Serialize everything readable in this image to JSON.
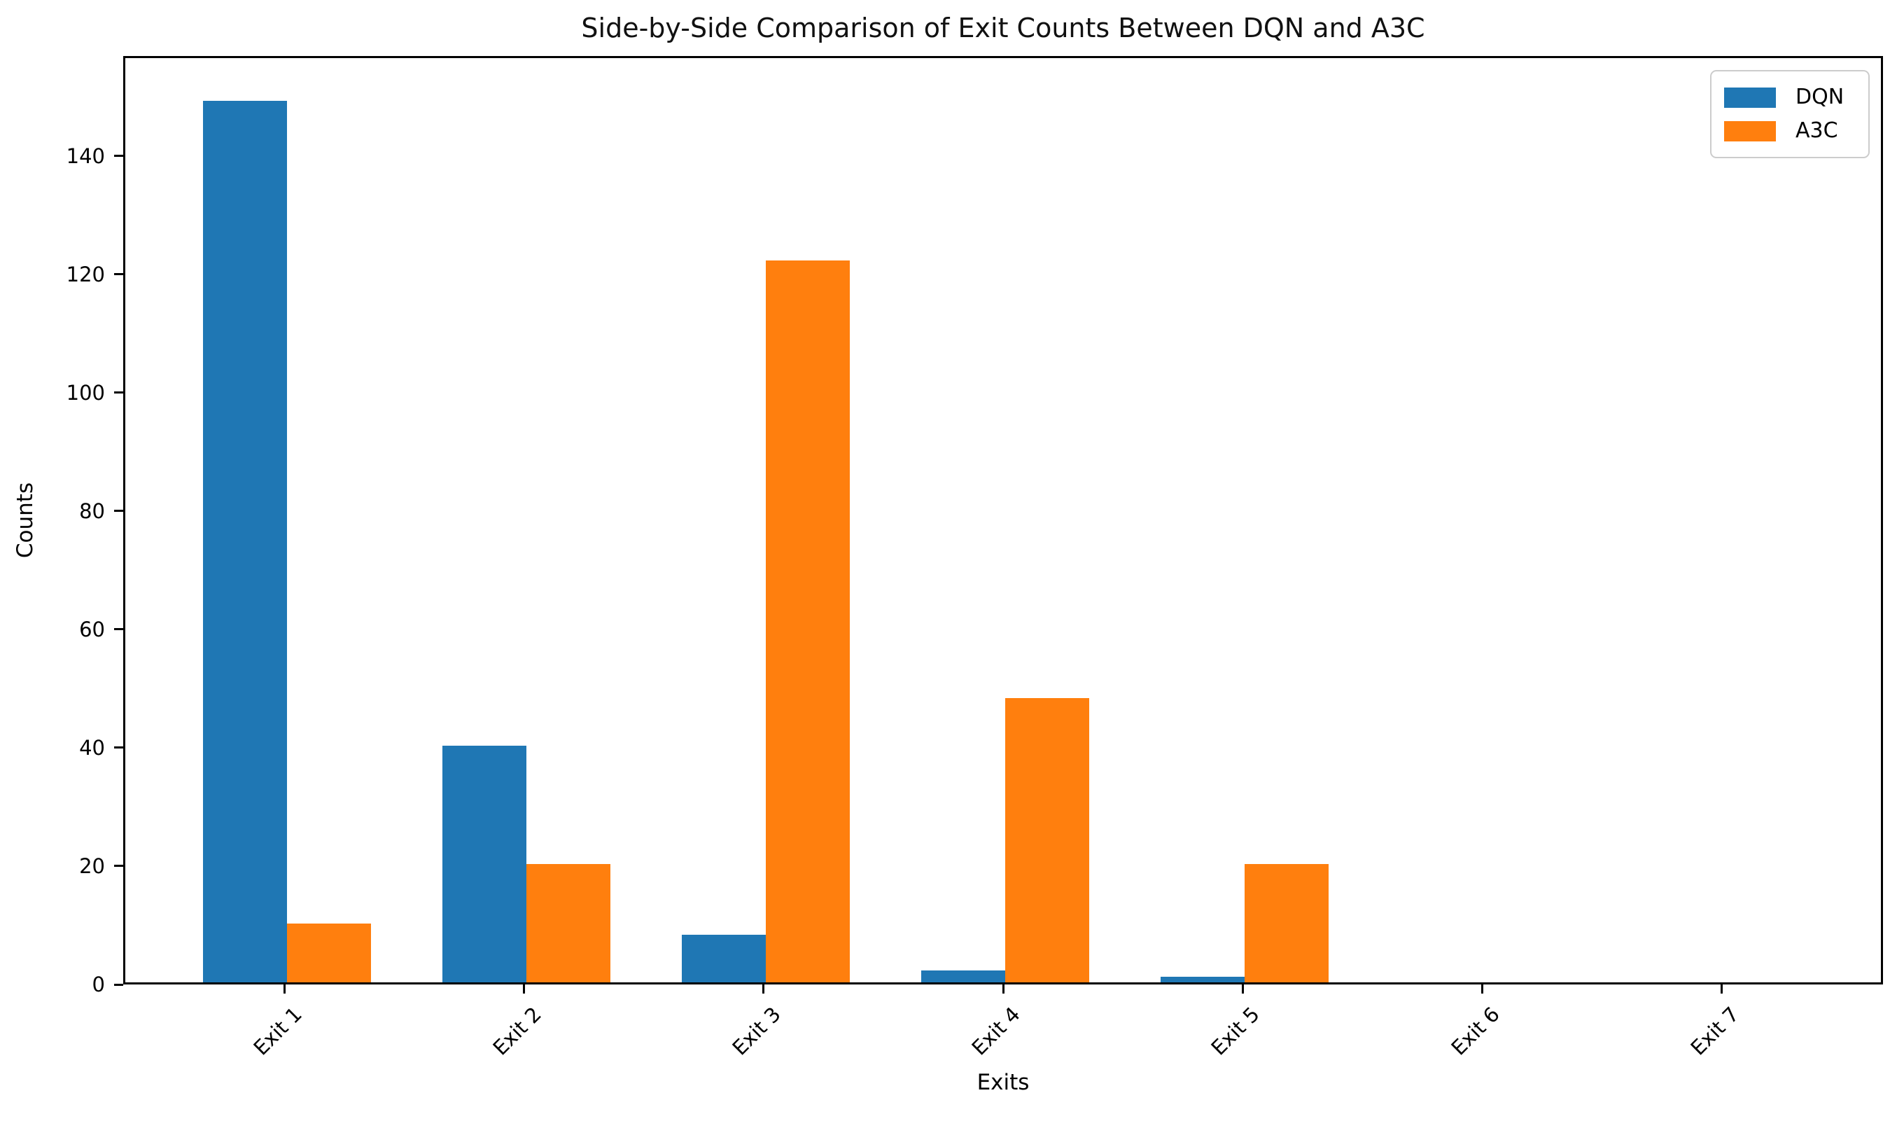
{
  "chart_data": {
    "type": "bar",
    "title": "Side-by-Side Comparison of Exit Counts Between DQN and A3C",
    "xlabel": "Exits",
    "ylabel": "Counts",
    "categories": [
      "Exit 1",
      "Exit 2",
      "Exit 3",
      "Exit 4",
      "Exit 5",
      "Exit 6",
      "Exit 7"
    ],
    "series": [
      {
        "name": "DQN",
        "color": "#1f77b4",
        "values": [
          149,
          40,
          8,
          2,
          1,
          0,
          0
        ]
      },
      {
        "name": "A3C",
        "color": "#ff7f0e",
        "values": [
          10,
          20,
          122,
          48,
          20,
          0,
          0
        ]
      }
    ],
    "yticks": [
      0,
      20,
      40,
      60,
      80,
      100,
      120,
      140
    ],
    "ylim": [
      0,
      156.9
    ],
    "bar_width_fraction": 0.35,
    "x_edge_padding_units": 0.675,
    "x_tick_rotation_deg": 45,
    "grid": false,
    "legend_position": "upper right",
    "background_color": "#ffffff",
    "text_color": "#000000",
    "spine_color": "#000000"
  }
}
